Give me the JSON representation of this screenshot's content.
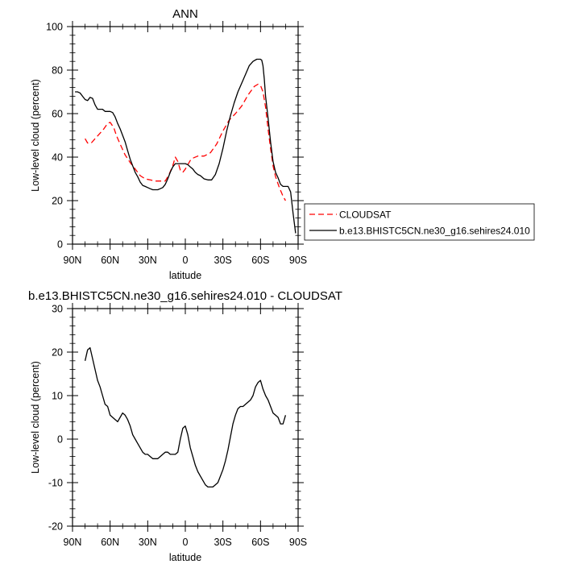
{
  "chart_data": [
    {
      "type": "line",
      "title": "ANN",
      "xlabel": "latitude",
      "ylabel": "Low-level cloud (percent)",
      "xlim": [
        90,
        -90
      ],
      "ylim": [
        0,
        100
      ],
      "xticks": [
        90,
        60,
        30,
        0,
        -30,
        -60,
        -90
      ],
      "xtick_labels": [
        "90N",
        "60N",
        "30N",
        "0",
        "30S",
        "60S",
        "90S"
      ],
      "yticks": [
        0,
        20,
        40,
        60,
        80,
        100
      ],
      "ytick_labels": [
        "0",
        "20",
        "40",
        "60",
        "80",
        "100"
      ],
      "legend_position": "outside-right",
      "series": [
        {
          "name": "CLOUDSAT",
          "color": "#ff0000",
          "dash": "dashed",
          "x": [
            80,
            78,
            75,
            72,
            68,
            65,
            62,
            60,
            57,
            55,
            52,
            48,
            44,
            40,
            36,
            32,
            28,
            24,
            20,
            16,
            13,
            10,
            8,
            6,
            4,
            2,
            0,
            -2,
            -4,
            -6,
            -10,
            -15,
            -20,
            -25,
            -30,
            -35,
            -40,
            -45,
            -50,
            -55,
            -58,
            -60,
            -62,
            -64,
            -66,
            -68,
            -70,
            -72,
            -75,
            -78,
            -80
          ],
          "y": [
            48.5,
            46.5,
            46.5,
            48.5,
            51,
            53,
            55.5,
            56,
            53.5,
            50,
            46,
            41,
            37.5,
            34.5,
            31.5,
            30,
            29.5,
            29,
            29,
            29,
            32,
            36,
            40,
            38,
            34,
            33,
            34.5,
            36.5,
            38.5,
            39.5,
            40.5,
            40.5,
            42,
            46,
            52,
            57,
            60,
            63.5,
            68.5,
            72.5,
            73.5,
            73,
            70,
            63,
            53,
            44,
            36,
            31,
            26,
            22,
            20
          ]
        },
        {
          "name": "b.e13.BHISTC5CN.ne30_g16.sehires24.010",
          "color": "#000000",
          "dash": "solid",
          "x": [
            88,
            86,
            84,
            82,
            80,
            78,
            76,
            74,
            72,
            70,
            68,
            66,
            64,
            62,
            60,
            58,
            56,
            54,
            52,
            50,
            48,
            46,
            44,
            42,
            40,
            38,
            36,
            34,
            32,
            30,
            28,
            26,
            24,
            22,
            20,
            18,
            16,
            14,
            12,
            10,
            8,
            6,
            4,
            2,
            0,
            -2,
            -4,
            -6,
            -8,
            -10,
            -12,
            -15,
            -18,
            -21,
            -24,
            -27,
            -30,
            -33,
            -36,
            -39,
            -42,
            -45,
            -48,
            -51,
            -54,
            -57,
            -60,
            -61,
            -62,
            -63,
            -64,
            -66,
            -68,
            -70,
            -72,
            -74,
            -76,
            -78,
            -80,
            -82,
            -84,
            -86,
            -88
          ],
          "y": [
            70,
            70,
            69.5,
            68,
            66.5,
            66,
            67.5,
            67,
            64,
            62,
            62,
            62,
            61,
            61,
            61,
            60.5,
            58.5,
            55.5,
            53,
            50,
            47,
            43,
            39,
            36,
            33,
            31,
            28.5,
            27,
            26.5,
            26,
            25.5,
            25,
            25,
            25,
            25.5,
            26,
            27.5,
            30,
            33,
            35.5,
            37,
            37,
            37,
            37,
            37,
            36.5,
            35.5,
            34.5,
            33,
            32,
            31.5,
            30,
            29.5,
            29.5,
            32,
            37,
            44,
            52,
            59,
            65,
            70,
            74,
            78,
            82,
            84,
            85,
            85,
            84.5,
            82,
            76,
            68,
            58,
            47,
            38,
            33,
            30.5,
            27.5,
            26.5,
            26.5,
            26.5,
            24,
            14,
            5
          ]
        }
      ]
    },
    {
      "type": "line",
      "title": "b.e13.BHISTC5CN.ne30_g16.sehires24.010 - CLOUDSAT",
      "xlabel": "latitude",
      "ylabel": "Low-level cloud (percent)",
      "xlim": [
        90,
        -90
      ],
      "ylim": [
        -20,
        30
      ],
      "xticks": [
        90,
        60,
        30,
        0,
        -30,
        -60,
        -90
      ],
      "xtick_labels": [
        "90N",
        "60N",
        "30N",
        "0",
        "30S",
        "60S",
        "90S"
      ],
      "yticks": [
        -20,
        -10,
        0,
        10,
        20,
        30
      ],
      "ytick_labels": [
        "-20",
        "-10",
        "0",
        "10",
        "20",
        "30"
      ],
      "series": [
        {
          "color": "#000000",
          "dash": "solid",
          "x": [
            80,
            78,
            76,
            74,
            72,
            70,
            68,
            66,
            64,
            62,
            60,
            58,
            56,
            54,
            52,
            50,
            48,
            46,
            44,
            42,
            40,
            38,
            36,
            34,
            32,
            30,
            28,
            26,
            24,
            22,
            20,
            18,
            16,
            14,
            12,
            10,
            8,
            6,
            4,
            2,
            0,
            -2,
            -4,
            -6,
            -8,
            -10,
            -12,
            -14,
            -16,
            -18,
            -20,
            -22,
            -24,
            -26,
            -28,
            -30,
            -32,
            -34,
            -36,
            -38,
            -40,
            -42,
            -44,
            -46,
            -48,
            -50,
            -52,
            -54,
            -56,
            -58,
            -60,
            -62,
            -64,
            -66,
            -68,
            -70,
            -72,
            -74,
            -76,
            -78,
            -80
          ],
          "y": [
            18,
            20.5,
            21,
            18.5,
            16,
            13.5,
            12,
            10,
            8,
            7.5,
            5.5,
            5,
            4.5,
            4,
            5,
            6,
            5.5,
            4.5,
            3,
            1,
            0,
            -1,
            -2,
            -3,
            -3.5,
            -3.5,
            -4,
            -4.5,
            -4.5,
            -4.5,
            -4,
            -3.5,
            -3,
            -3,
            -3.5,
            -3.5,
            -3.5,
            -3,
            0,
            2.5,
            3,
            1,
            -2,
            -4,
            -6,
            -7.5,
            -8.5,
            -9.5,
            -10.5,
            -11,
            -11,
            -11,
            -10.5,
            -10,
            -8.5,
            -7,
            -5,
            -2.5,
            0.5,
            3.5,
            5.5,
            7,
            7.5,
            7.5,
            8,
            8.5,
            9,
            10,
            12,
            13,
            13.5,
            11.5,
            10,
            9,
            7.5,
            6,
            5.5,
            5,
            3.5,
            3.5,
            5.5
          ]
        }
      ]
    }
  ]
}
